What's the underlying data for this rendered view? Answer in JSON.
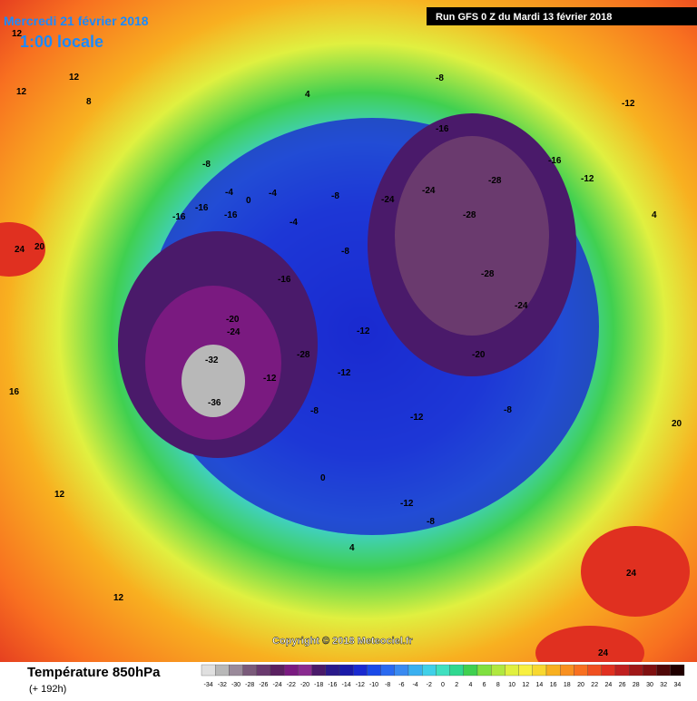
{
  "header": {
    "date": "Mercredi 21 février 2018",
    "time": "1:00 locale",
    "run": "Run GFS 0 Z du Mardi 13 février 2018"
  },
  "copyright": "Copyright © 2018 Meteociel.fr",
  "footer": {
    "title": "Température 850hPa",
    "lead": "(+ 192h)"
  },
  "legend": {
    "ticks": [
      -34,
      -32,
      -30,
      -28,
      -26,
      -24,
      -22,
      -20,
      -18,
      -16,
      -14,
      -12,
      -10,
      -8,
      -6,
      -4,
      -2,
      0,
      2,
      4,
      6,
      8,
      10,
      12,
      14,
      16,
      18,
      20,
      22,
      24,
      26,
      28,
      30,
      32,
      34
    ],
    "colors": [
      "#e0e0e0",
      "#b8b8b8",
      "#9a8a9a",
      "#7a5a7a",
      "#6a3a6e",
      "#5a2060",
      "#7a1a80",
      "#8a2a90",
      "#4a1a6a",
      "#2a1a8a",
      "#1a1aa8",
      "#1a2ad0",
      "#1a4ae8",
      "#2a6af0",
      "#3a8af0",
      "#3ab0f0",
      "#40d0e8",
      "#40e0c0",
      "#30d890",
      "#40d050",
      "#80e040",
      "#b0e840",
      "#e0f040",
      "#f8f040",
      "#f8d830",
      "#f8b020",
      "#f89020",
      "#f87020",
      "#f05020",
      "#e03020",
      "#c02020",
      "#a01818",
      "#801010",
      "#500808",
      "#200000"
    ]
  },
  "map_labels": [
    12,
    12,
    8,
    -8,
    -4,
    0,
    -4,
    4,
    -8,
    -16,
    -16,
    -16,
    -4,
    -8,
    -16,
    -20,
    -24,
    -28,
    -32,
    -36,
    -12,
    -8,
    -12,
    -12,
    -8,
    -16,
    -24,
    -24,
    -28,
    -28,
    -28,
    -24,
    -20,
    -16,
    -12,
    -12,
    4,
    20,
    24,
    24,
    -12,
    -8,
    -12,
    -8,
    0,
    4,
    12,
    12,
    16,
    12,
    24,
    20
  ]
}
